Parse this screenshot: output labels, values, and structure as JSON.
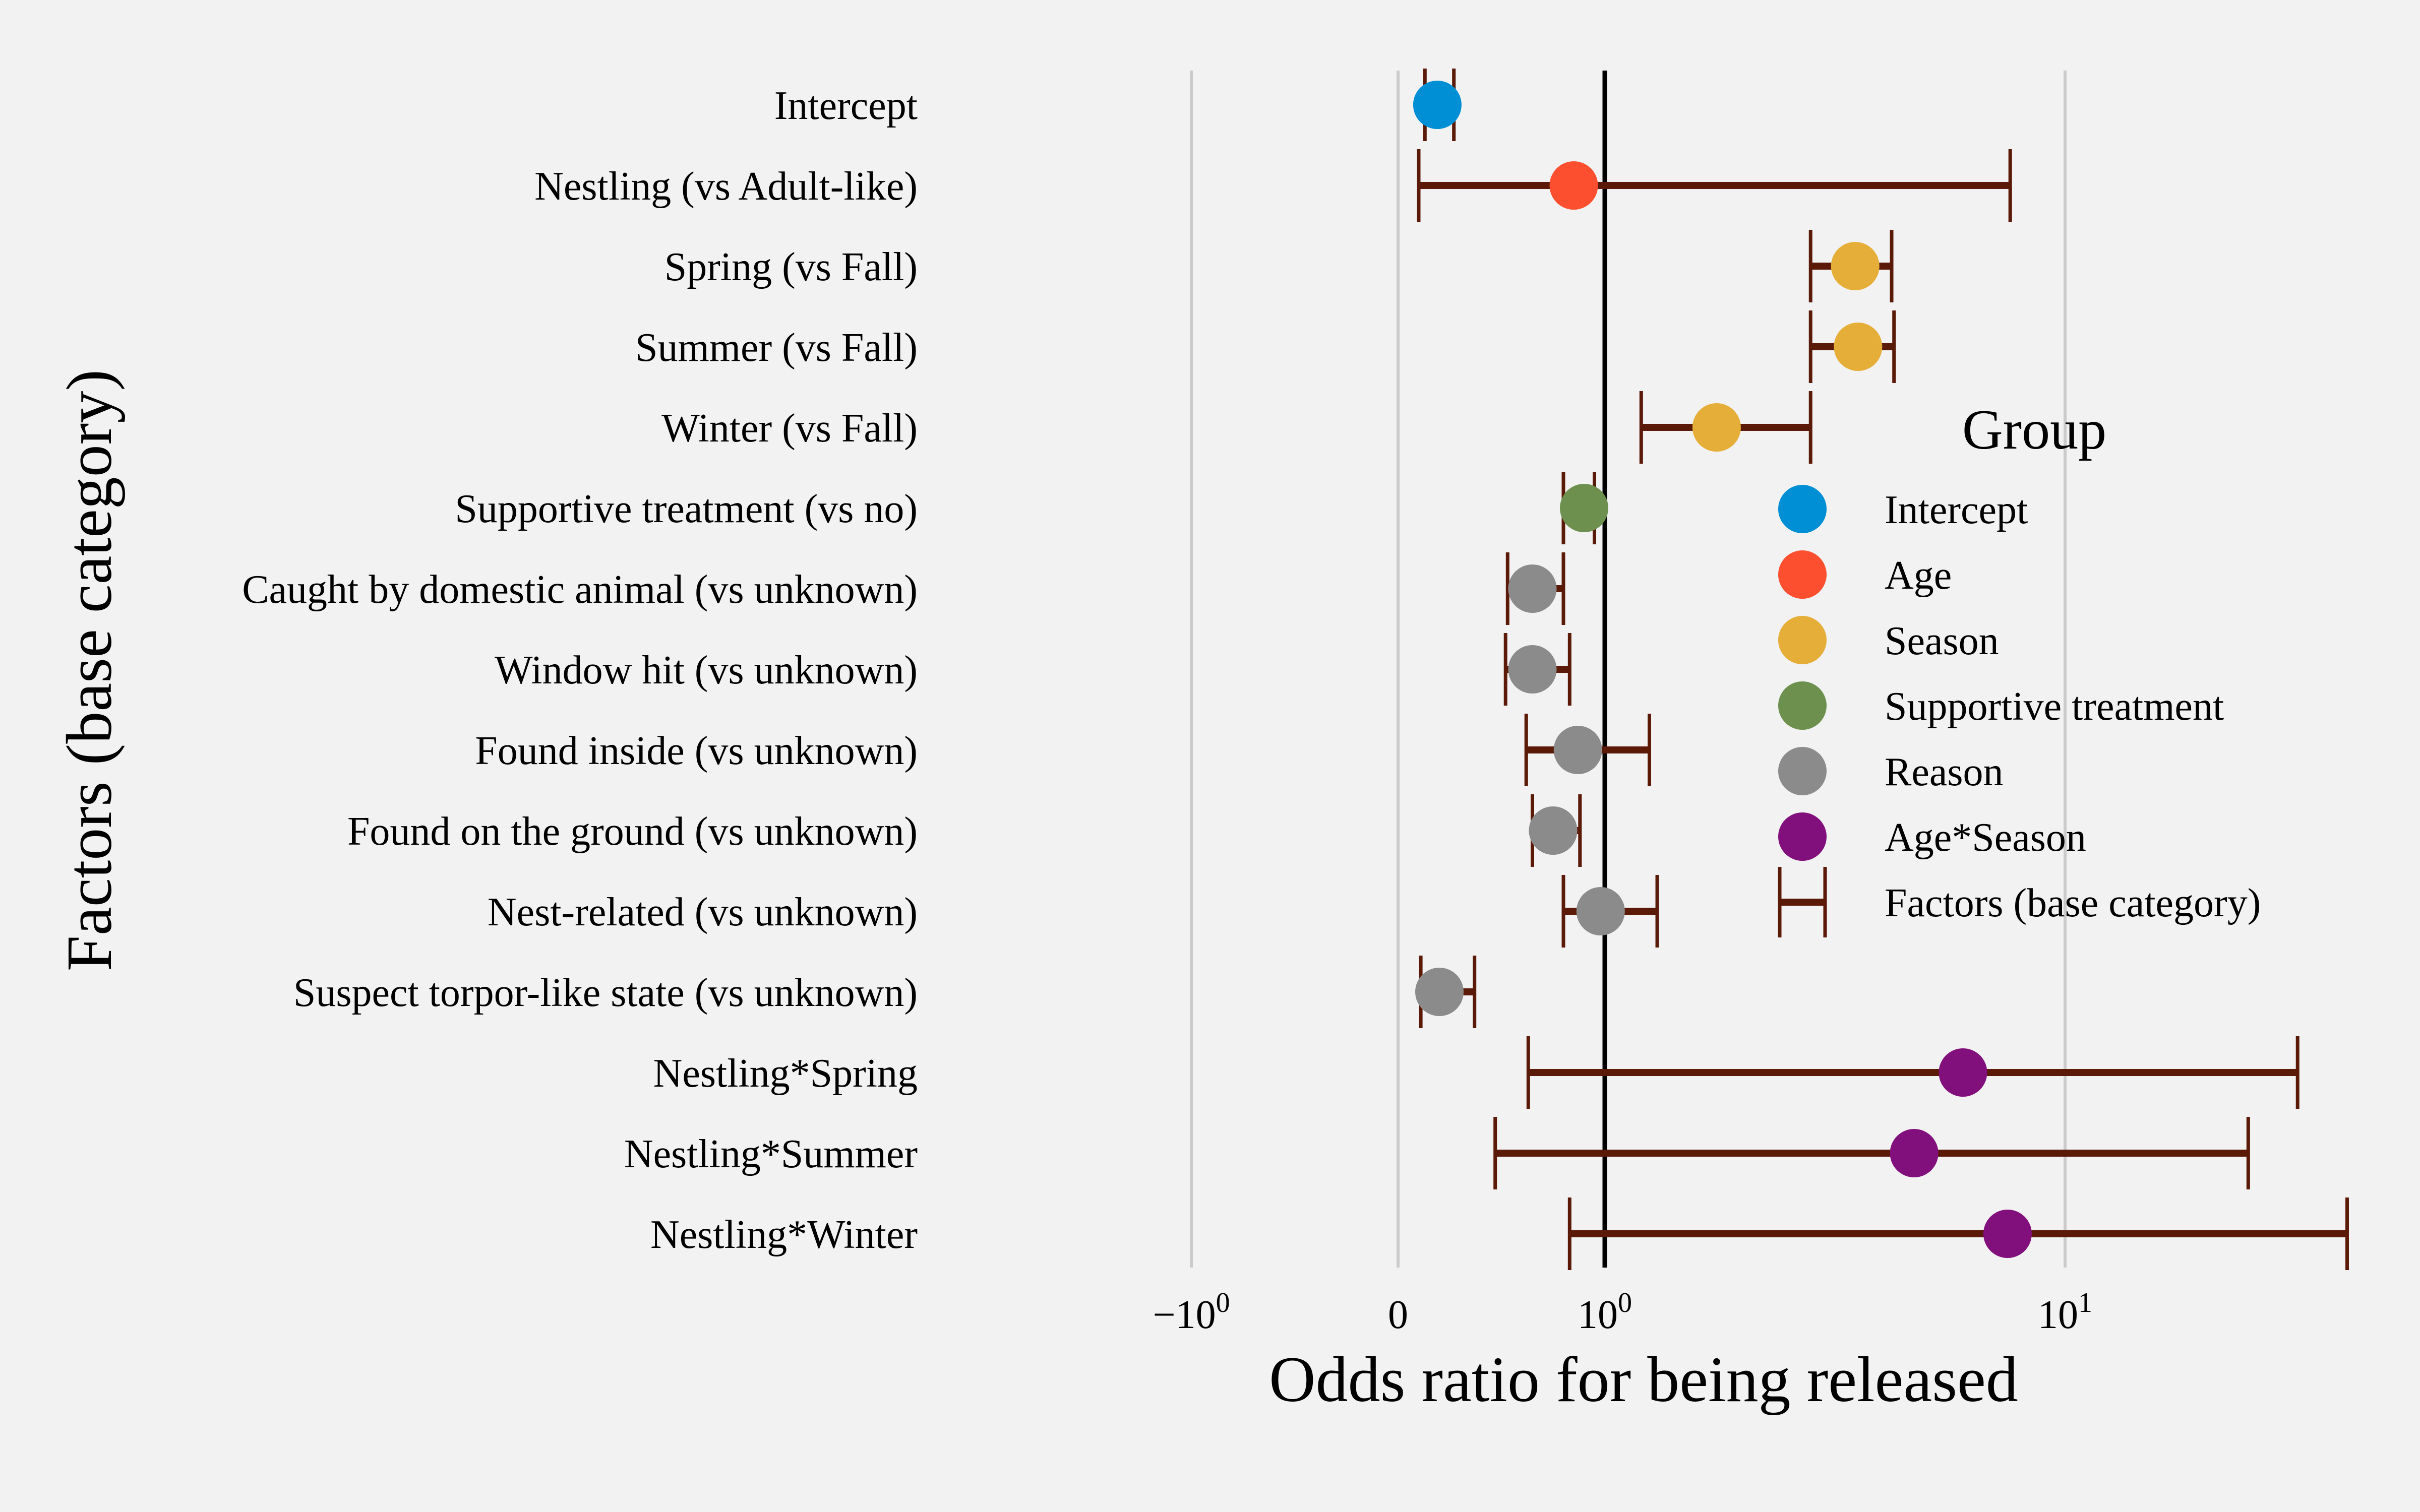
{
  "chart_data": {
    "type": "scatter",
    "title": "",
    "xlabel": "Odds ratio for being released",
    "ylabel": "Factors (base category)",
    "x_scale": "symlog",
    "x_ticks": [
      {
        "value": -1,
        "base": "−",
        "exp": "10",
        "sup": "0"
      },
      {
        "value": 0,
        "base": "0",
        "exp": "",
        "sup": ""
      },
      {
        "value": 1,
        "base": "",
        "exp": "10",
        "sup": "0"
      },
      {
        "value": 10,
        "base": "",
        "exp": "10",
        "sup": "1"
      }
    ],
    "reference_line": 1,
    "grid": true,
    "legend_placement": "center-right",
    "legend_title": "Group",
    "groups": [
      {
        "name": "Intercept",
        "color": "#008fd5"
      },
      {
        "name": "Age",
        "color": "#fc4f30"
      },
      {
        "name": "Season",
        "color": "#e5ae38"
      },
      {
        "name": "Supportive treatment",
        "color": "#6d904f"
      },
      {
        "name": "Reason",
        "color": "#8b8b8b"
      },
      {
        "name": "Age*Season",
        "color": "#810f7c"
      }
    ],
    "errorbar_legend_label": "Factors (base category)",
    "errorbar_color": "#5a1a07",
    "factors": [
      {
        "label": "Intercept",
        "group": "Intercept",
        "or": 0.19,
        "lo": 0.13,
        "hi": 0.27
      },
      {
        "label": "Nestling (vs Adult-like)",
        "group": "Age",
        "or": 0.85,
        "lo": 0.1,
        "hi": 7.6
      },
      {
        "label": "Spring (vs Fall)",
        "group": "Season",
        "or": 3.5,
        "lo": 2.8,
        "hi": 4.2
      },
      {
        "label": "Summer (vs Fall)",
        "group": "Season",
        "or": 3.55,
        "lo": 2.8,
        "hi": 4.25
      },
      {
        "label": "Winter (vs Fall)",
        "group": "Season",
        "or": 1.75,
        "lo": 1.2,
        "hi": 2.8
      },
      {
        "label": "Supportive treatment (vs no)",
        "group": "Supportive treatment",
        "or": 0.9,
        "lo": 0.8,
        "hi": 0.95
      },
      {
        "label": "Caught by domestic animal (vs unknown)",
        "group": "Reason",
        "or": 0.65,
        "lo": 0.53,
        "hi": 0.8
      },
      {
        "label": "Window hit (vs unknown)",
        "group": "Reason",
        "or": 0.65,
        "lo": 0.52,
        "hi": 0.83
      },
      {
        "label": "Found inside (vs unknown)",
        "group": "Reason",
        "or": 0.87,
        "lo": 0.62,
        "hi": 1.25
      },
      {
        "label": "Found on the ground (vs unknown)",
        "group": "Reason",
        "or": 0.75,
        "lo": 0.65,
        "hi": 0.88
      },
      {
        "label": "Nest-related (vs unknown)",
        "group": "Reason",
        "or": 0.98,
        "lo": 0.8,
        "hi": 1.3
      },
      {
        "label": "Suspect torpor-like state (vs unknown)",
        "group": "Reason",
        "or": 0.2,
        "lo": 0.11,
        "hi": 0.37
      },
      {
        "label": "Nestling*Spring",
        "group": "Age*Season",
        "or": 6.0,
        "lo": 0.63,
        "hi": 32
      },
      {
        "label": "Nestling*Summer",
        "group": "Age*Season",
        "or": 4.7,
        "lo": 0.47,
        "hi": 25
      },
      {
        "label": "Nestling*Winter",
        "group": "Age*Season",
        "or": 7.5,
        "lo": 0.83,
        "hi": 41
      }
    ]
  }
}
